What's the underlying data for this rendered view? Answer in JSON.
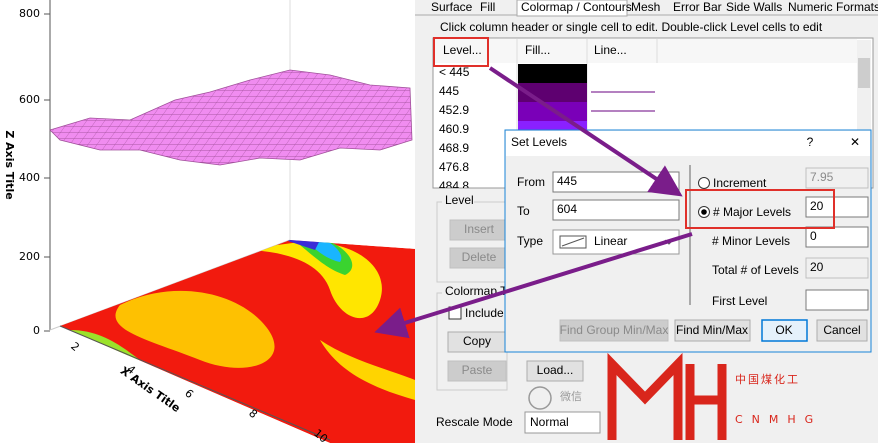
{
  "plot": {
    "z_axis_title": "Z Axis Title",
    "z_ticks": [
      800,
      600,
      400,
      200,
      0
    ],
    "x_axis_title": "X Axis Title",
    "x_ticks": [
      2,
      4,
      6,
      8,
      10
    ]
  },
  "tabs": [
    "Surface",
    "Fill",
    "Colormap / Contours",
    "Mesh",
    "Error Bar",
    "Side Walls",
    "Numeric Formats"
  ],
  "instruction": "Click column header or single cell to edit. Double-click Level cells to edit",
  "level_table": {
    "headers": [
      "Level...",
      "Fill...",
      "Line..."
    ],
    "rows": [
      "< 445",
      "445",
      "452.9",
      "460.9",
      "468.9",
      "476.8",
      "484.8"
    ]
  },
  "level_group": {
    "title": "Level",
    "buttons": [
      "Insert",
      "Delete"
    ]
  },
  "colormap_group": {
    "title": "Colormap Th",
    "checkbox": "Include L",
    "buttons": [
      "Copy",
      "Paste",
      "Load..."
    ]
  },
  "rescale": {
    "label": "Rescale Mode",
    "value": "Normal"
  },
  "set_levels": {
    "title": "Set Levels",
    "help": "?",
    "close": "✕",
    "from_label": "From",
    "from": "445",
    "to_label": "To",
    "to": "604",
    "type_label": "Type",
    "type": "Linear",
    "increment_label": "Increment",
    "increment": "7.95",
    "major_label": "# Major Levels",
    "major": "20",
    "minor_label": "# Minor Levels",
    "minor": "0",
    "total_label": "Total # of Levels",
    "total": "20",
    "first_label": "First Level",
    "buttons": [
      "Find Group Min/Max",
      "Find Min/Max",
      "OK",
      "Cancel"
    ]
  },
  "watermark": {
    "wechat": "微信",
    "name_cn": "中国煤化工",
    "name_en": "CNMHG"
  }
}
